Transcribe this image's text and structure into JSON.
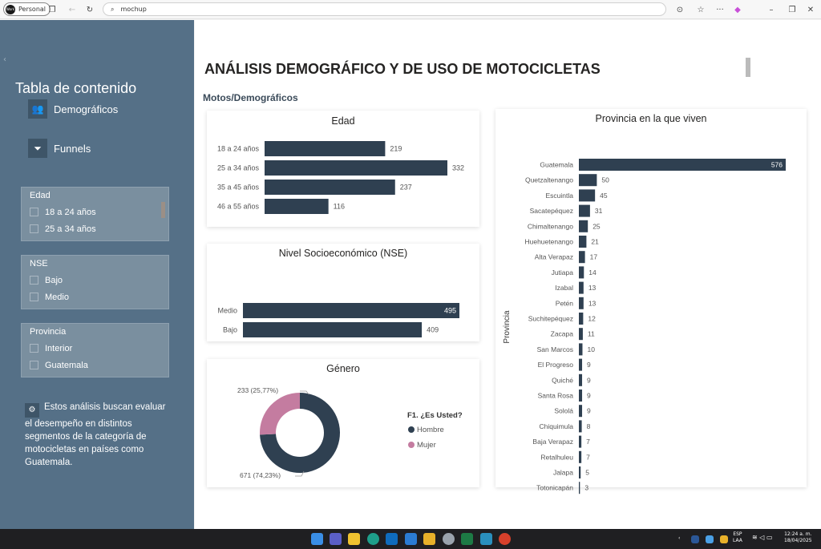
{
  "browser": {
    "profile": "Personal",
    "profile_avatar": "Work",
    "address": "mochup"
  },
  "sidebar": {
    "title": "Tabla de contenido",
    "nav": [
      {
        "label": "Demográficos",
        "icon": "people-icon"
      },
      {
        "label": "Funnels",
        "icon": "funnel-icon"
      }
    ],
    "slicers": [
      {
        "title": "Edad",
        "options": [
          "18 a 24 años",
          "25 a 34 años"
        ]
      },
      {
        "title": "NSE",
        "options": [
          "Bajo",
          "Medio"
        ]
      },
      {
        "title": "Provincia",
        "options": [
          "Interior",
          "Guatemala"
        ]
      }
    ],
    "note": "Estos análisis buscan evaluar el desempeño en distintos segmentos de la categoría de motocicletas en países como Guatemala."
  },
  "page": {
    "title": "ANÁLISIS DEMOGRÁFICO Y DE USO DE MOTOCICLETAS",
    "section": "Motos/Demográficos"
  },
  "colors": {
    "bar": "#2f4051",
    "female": "#c47ca0",
    "sidebar": "#557087"
  },
  "chart_data": [
    {
      "type": "bar",
      "orientation": "horizontal",
      "title": "Edad",
      "categories": [
        "18 a 24 años",
        "25 a 34 años",
        "35 a 45 años",
        "46 a 55 años"
      ],
      "values": [
        219,
        332,
        237,
        116
      ]
    },
    {
      "type": "bar",
      "orientation": "horizontal",
      "title": "Nivel Socioeconómico (NSE)",
      "categories": [
        "Medio",
        "Bajo"
      ],
      "values": [
        495,
        409
      ]
    },
    {
      "type": "pie",
      "donut": true,
      "title": "Género",
      "legend_title": "F1. ¿Es Usted?",
      "categories": [
        "Hombre",
        "Mujer"
      ],
      "values": [
        671,
        233
      ],
      "labels": [
        "671 (74,23%)",
        "233 (25,77%)"
      ]
    },
    {
      "type": "bar",
      "orientation": "horizontal",
      "title": "Provincia en la que viven",
      "ylabel": "Provincia",
      "categories": [
        "Guatemala",
        "Quetzaltenango",
        "Escuintla",
        "Sacatepéquez",
        "Chimaltenango",
        "Huehuetenango",
        "Alta Verapaz",
        "Jutiapa",
        "Izabal",
        "Petén",
        "Suchitepéquez",
        "Zacapa",
        "San Marcos",
        "El Progreso",
        "Quiché",
        "Santa Rosa",
        "Sololá",
        "Chiquimula",
        "Baja Verapaz",
        "Retalhuleu",
        "Jalapa",
        "Totonicapán"
      ],
      "values": [
        576,
        50,
        45,
        31,
        25,
        21,
        17,
        14,
        13,
        13,
        12,
        11,
        10,
        9,
        9,
        9,
        9,
        8,
        7,
        7,
        5,
        3
      ]
    }
  ],
  "taskbar": {
    "lang": "ESP",
    "lang2": "LAA",
    "time": "12:24 a. m.",
    "date": "18/04/2025"
  }
}
